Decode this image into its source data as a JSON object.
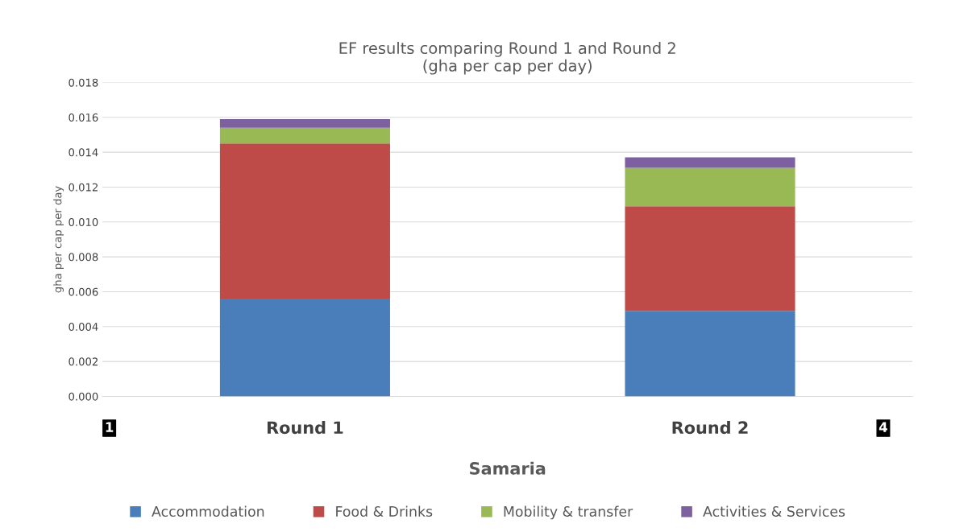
{
  "chart_data": {
    "type": "bar",
    "title": "EF results comparing Round 1 and Round 2\n(gha per cap per day)",
    "xlabel": "Samaria",
    "ylabel": "gha per cap per day",
    "categories": [
      "Round 1",
      "Round 2"
    ],
    "stacked": true,
    "series": [
      {
        "name": "Accommodation",
        "color": "#4a7ebb",
        "values": [
          0.0056,
          0.0049
        ]
      },
      {
        "name": "Food & Drinks",
        "color": "#be4b48",
        "values": [
          0.0089,
          0.006
        ]
      },
      {
        "name": "Mobility & transfer",
        "color": "#98b954",
        "values": [
          0.0009,
          0.0022
        ]
      },
      {
        "name": "Activities & Services",
        "color": "#7d60a0",
        "values": [
          0.0005,
          0.0006
        ]
      }
    ],
    "ylim": [
      0,
      0.018
    ],
    "yticks": [
      {
        "value": 0,
        "label": "0.000"
      },
      {
        "value": 0.002,
        "label": "0.002"
      },
      {
        "value": 0.004,
        "label": "0.004"
      },
      {
        "value": 0.006,
        "label": "0.006"
      },
      {
        "value": 0.008,
        "label": "0.008"
      },
      {
        "value": 0.01,
        "label": "0.010"
      },
      {
        "value": 0.012,
        "label": "0.012"
      },
      {
        "value": 0.014,
        "label": "0.014"
      },
      {
        "value": 0.016,
        "label": "0.016"
      },
      {
        "value": 0.018,
        "label": "0.018"
      }
    ],
    "grid": "y",
    "legend": "bottom",
    "annotations": [
      "1",
      "4"
    ]
  }
}
